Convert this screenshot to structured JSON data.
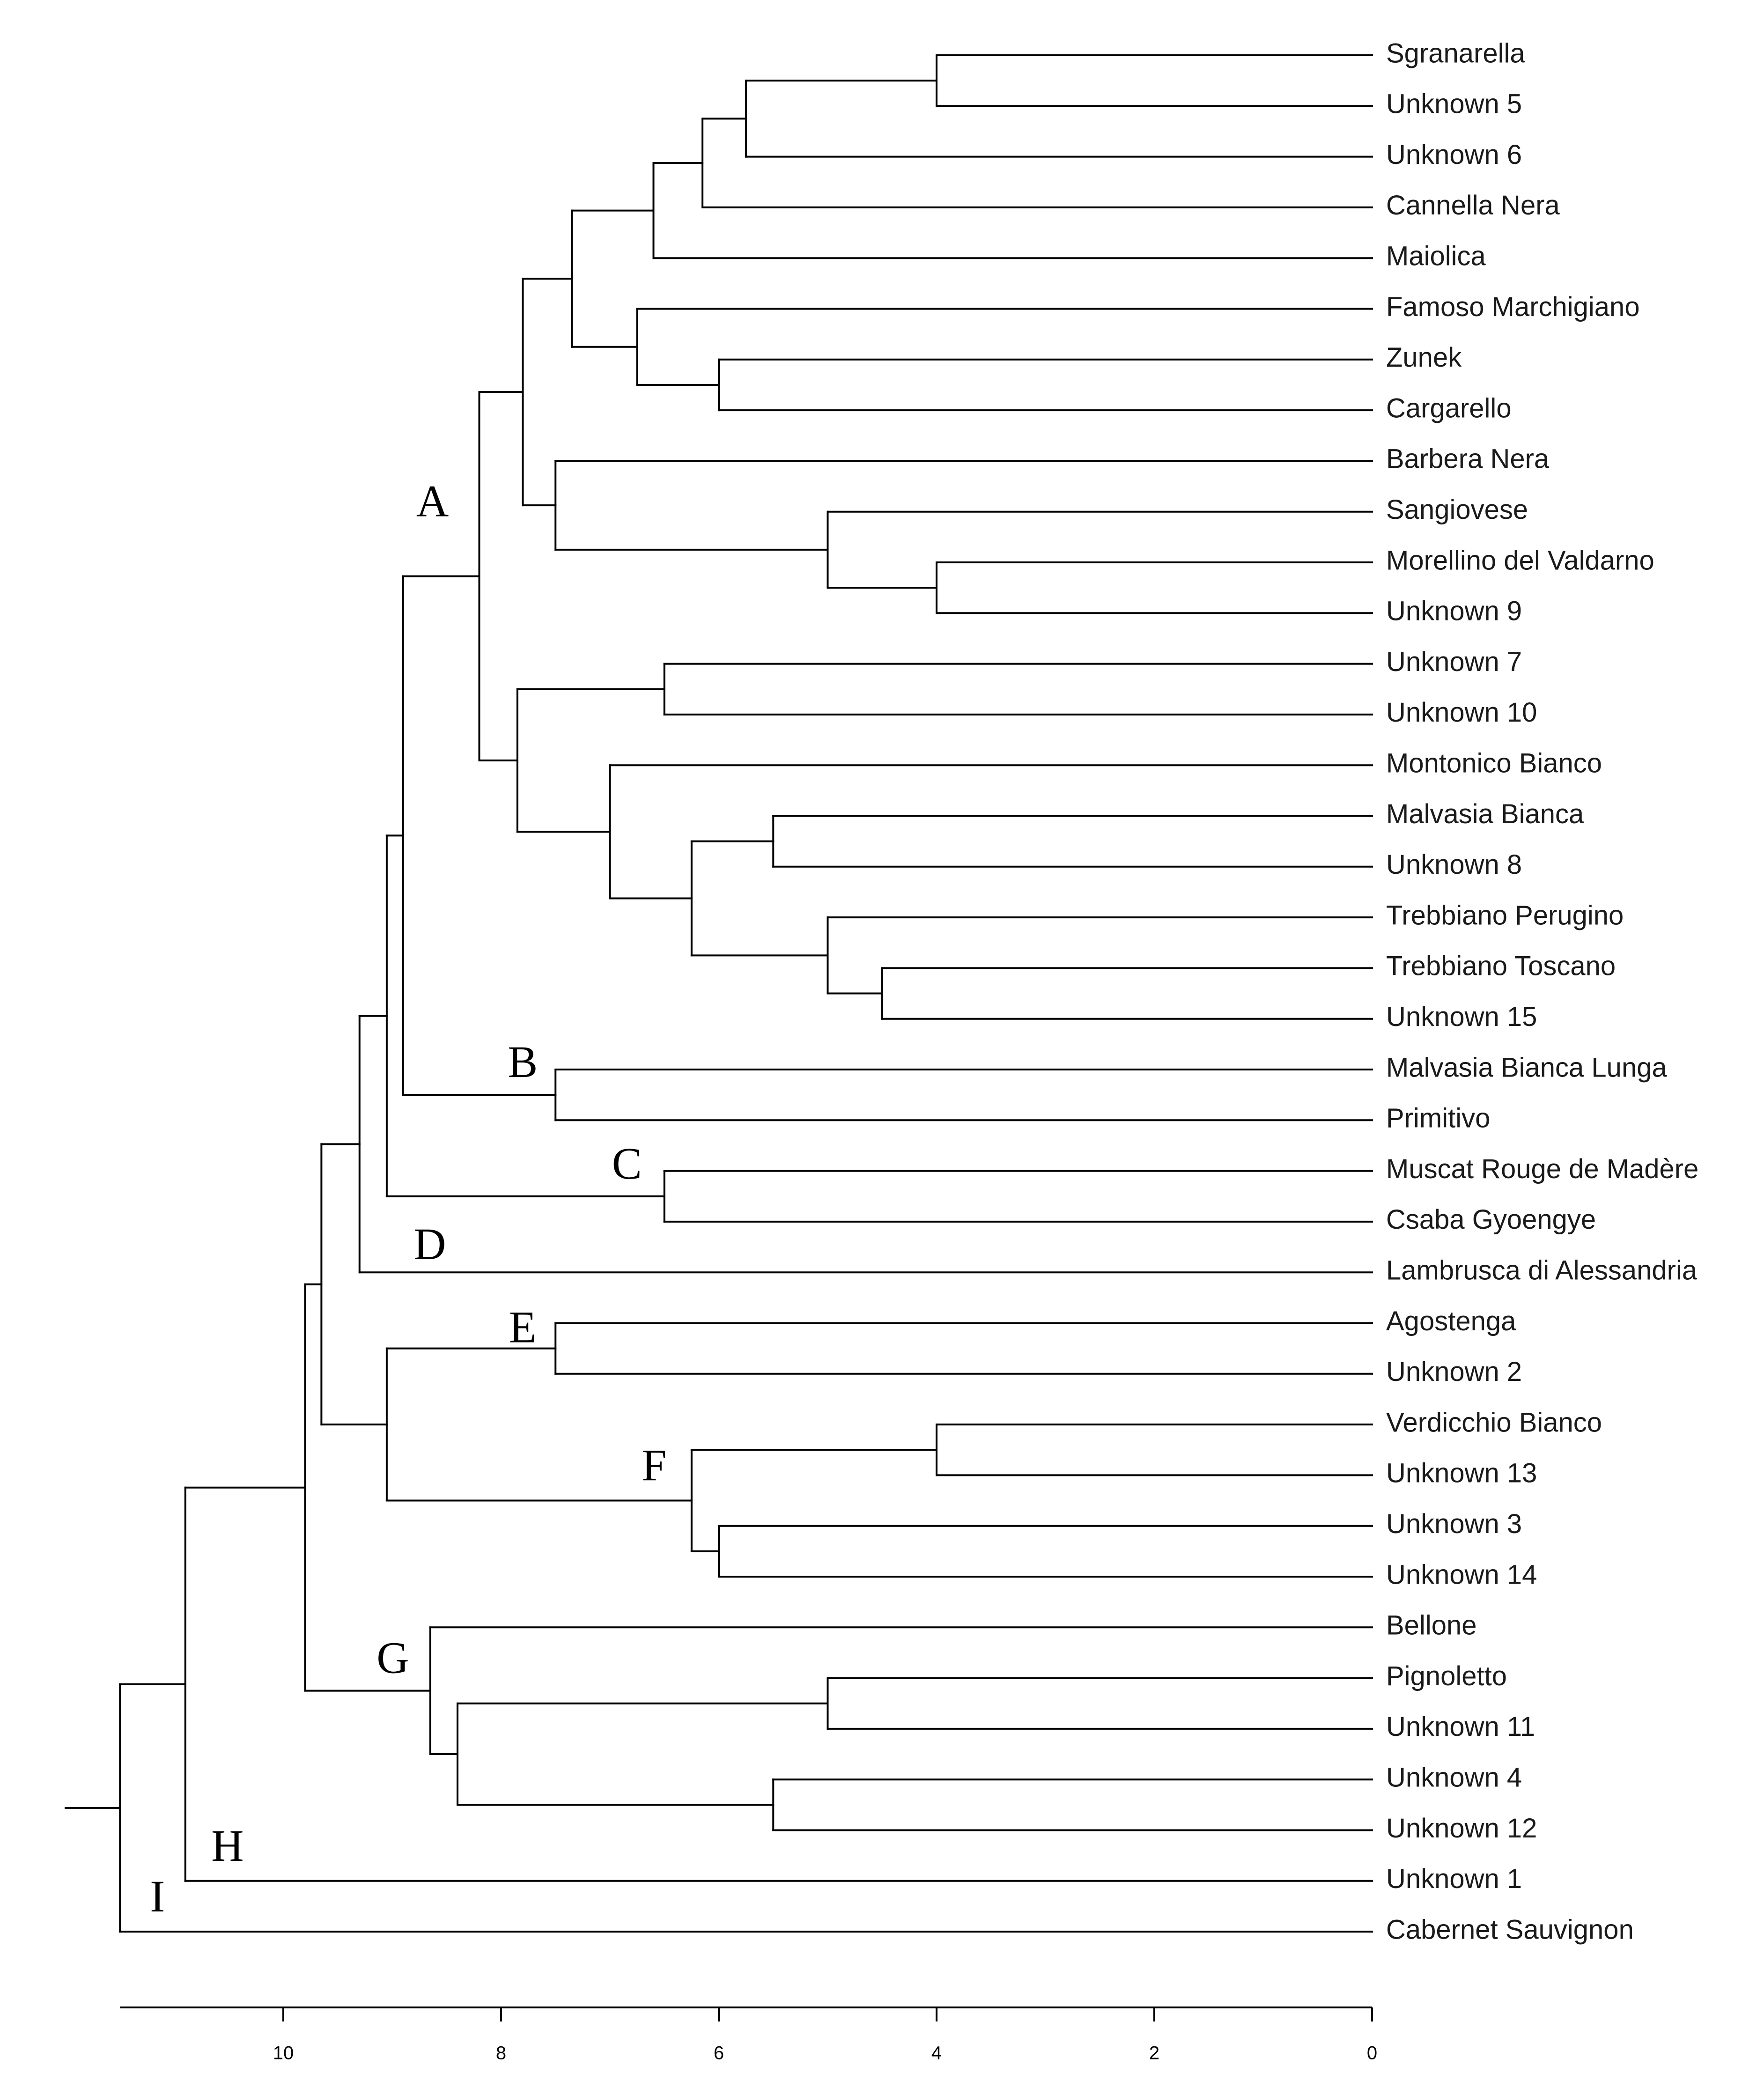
{
  "chart_data": {
    "type": "dendrogram",
    "title": "",
    "xlabel": "",
    "axis": {
      "range": [
        11.5,
        0
      ],
      "ticks": [
        10,
        8,
        6,
        4,
        2,
        0
      ]
    },
    "leaves": [
      "Sgranarella",
      "Unknown 5",
      "Unknown 6",
      "Cannella Nera",
      "Maiolica",
      "Famoso Marchigiano",
      "Zunek",
      "Cargarello",
      "Barbera Nera",
      "Sangiovese",
      "Morellino del Valdarno",
      "Unknown 9",
      "Unknown 7",
      "Unknown 10",
      "Montonico Bianco",
      "Malvasia Bianca",
      "Unknown 8",
      "Trebbiano Perugino",
      "Trebbiano Toscano",
      "Unknown 15",
      "Malvasia Bianca Lunga",
      "Primitivo",
      "Muscat Rouge de Madère",
      "Csaba Gyoengye",
      "Lambrusca di Alessandria",
      "Agostenga",
      "Unknown 2",
      "Verdicchio Bianco",
      "Unknown 13",
      "Unknown 3",
      "Unknown 14",
      "Bellone",
      "Pignoletto",
      "Unknown 11",
      "Unknown 4",
      "Unknown 12",
      "Unknown 1",
      "Cabernet Sauvignon"
    ],
    "merges": [
      {
        "id": "m1",
        "children": [
          0,
          1
        ],
        "height": 4.0
      },
      {
        "id": "m2",
        "children": [
          "m1",
          2
        ],
        "height": 5.75
      },
      {
        "id": "m3",
        "children": [
          "m2",
          3
        ],
        "height": 6.15
      },
      {
        "id": "m4",
        "children": [
          "m3",
          4
        ],
        "height": 6.6
      },
      {
        "id": "m5",
        "children": [
          6,
          7
        ],
        "height": 6.0
      },
      {
        "id": "m6",
        "children": [
          5,
          "m5"
        ],
        "height": 6.75
      },
      {
        "id": "m7",
        "children": [
          "m4",
          "m6"
        ],
        "height": 7.35
      },
      {
        "id": "m8",
        "children": [
          10,
          11
        ],
        "height": 4.0
      },
      {
        "id": "m9",
        "children": [
          9,
          "m8"
        ],
        "height": 5.0
      },
      {
        "id": "m10",
        "children": [
          8,
          "m9"
        ],
        "height": 7.5
      },
      {
        "id": "m11",
        "children": [
          "m7",
          "m10"
        ],
        "height": 7.8
      },
      {
        "id": "m12",
        "children": [
          12,
          13
        ],
        "height": 6.5
      },
      {
        "id": "m13",
        "children": [
          15,
          16
        ],
        "height": 5.5
      },
      {
        "id": "m14",
        "children": [
          18,
          19
        ],
        "height": 4.5
      },
      {
        "id": "m15",
        "children": [
          17,
          "m14"
        ],
        "height": 5.0
      },
      {
        "id": "m16",
        "children": [
          "m13",
          "m15"
        ],
        "height": 6.25
      },
      {
        "id": "m17",
        "children": [
          14,
          "m16"
        ],
        "height": 7.0
      },
      {
        "id": "m18",
        "children": [
          "m12",
          "m17"
        ],
        "height": 7.85
      },
      {
        "id": "m19",
        "children": [
          "m11",
          "m18"
        ],
        "height": 8.2
      },
      {
        "id": "m20",
        "children": [
          20,
          21
        ],
        "height": 7.5
      },
      {
        "id": "m21",
        "children": [
          "m19",
          "m20"
        ],
        "height": 8.9
      },
      {
        "id": "m22",
        "children": [
          22,
          23
        ],
        "height": 6.5
      },
      {
        "id": "m23",
        "children": [
          "m21",
          "m22"
        ],
        "height": 9.05
      },
      {
        "id": "m24",
        "children": [
          "m23",
          24
        ],
        "height": 9.3
      },
      {
        "id": "m25",
        "children": [
          25,
          26
        ],
        "height": 7.5
      },
      {
        "id": "m26",
        "children": [
          27,
          28
        ],
        "height": 4.0
      },
      {
        "id": "m27",
        "children": [
          29,
          30
        ],
        "height": 6.0
      },
      {
        "id": "m28",
        "children": [
          "m26",
          "m27"
        ],
        "height": 6.25
      },
      {
        "id": "m29",
        "children": [
          "m25",
          "m28"
        ],
        "height": 9.05
      },
      {
        "id": "m30",
        "children": [
          "m24",
          "m29"
        ],
        "height": 9.65
      },
      {
        "id": "m31",
        "children": [
          32,
          33
        ],
        "height": 5.0
      },
      {
        "id": "m32",
        "children": [
          34,
          35
        ],
        "height": 5.5
      },
      {
        "id": "m33",
        "children": [
          "m31",
          "m32"
        ],
        "height": 8.4
      },
      {
        "id": "m34",
        "children": [
          31,
          "m33"
        ],
        "height": 8.65
      },
      {
        "id": "m35",
        "children": [
          "m30",
          "m34"
        ],
        "height": 9.8
      },
      {
        "id": "m36",
        "children": [
          "m35",
          36
        ],
        "height": 10.9
      },
      {
        "id": "m37",
        "children": [
          "m36",
          37
        ],
        "height": 11.5
      }
    ],
    "root_stub_height": 12.0,
    "clusters": [
      {
        "label": "A",
        "node": "m19"
      },
      {
        "label": "B",
        "node": "m20"
      },
      {
        "label": "C",
        "node": "m22"
      },
      {
        "label": "D",
        "node": 24
      },
      {
        "label": "E",
        "node": "m25"
      },
      {
        "label": "F",
        "node": "m28"
      },
      {
        "label": "G",
        "node": "m34"
      },
      {
        "label": "H",
        "node": 36
      },
      {
        "label": "I",
        "node": 37
      }
    ]
  }
}
